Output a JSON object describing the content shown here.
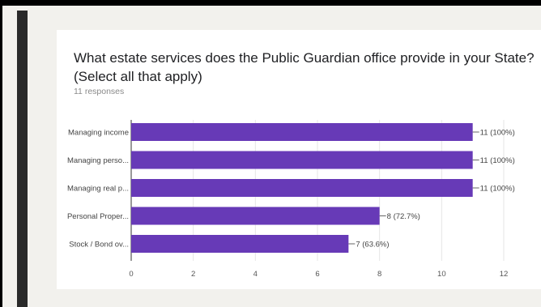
{
  "title": "What estate services does the Public Guardian office provide in your State?\n(Select all that apply)",
  "responses": "11 responses",
  "colors": {
    "bar": "#673ab7",
    "grid": "#e6e6e6",
    "background": "#f2f1ed",
    "card": "#ffffff"
  },
  "chart_data": {
    "type": "bar",
    "orientation": "horizontal",
    "categories": [
      "Managing income",
      "Managing perso...",
      "Managing real p...",
      "Personal Proper...",
      "Stock / Bond ov..."
    ],
    "values": [
      11,
      11,
      11,
      8,
      7
    ],
    "data_labels": [
      "11 (100%)",
      "11 (100%)",
      "11 (100%)",
      "8 (72.7%)",
      "7 (63.6%)"
    ],
    "x_ticks": [
      0,
      2,
      4,
      6,
      8,
      10,
      12
    ],
    "xlim": [
      0,
      12
    ],
    "grid": true
  }
}
